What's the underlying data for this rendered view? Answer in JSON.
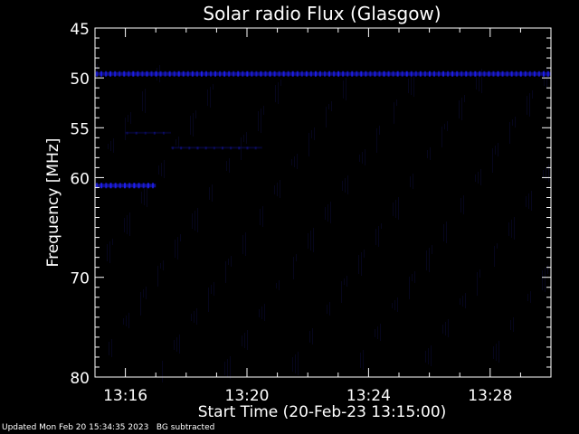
{
  "chart_data": {
    "type": "heatmap",
    "title": "Solar radio Flux (Glasgow)",
    "xlabel": "Start Time (20-Feb-23 13:15:00)",
    "ylabel": "Frequency [MHz]",
    "xlim": [
      "13:15:00",
      "13:30:00"
    ],
    "ylim": [
      45,
      80
    ],
    "x_ticks": [
      "13:16",
      "13:20",
      "13:24",
      "13:28"
    ],
    "y_ticks": [
      45,
      50,
      55,
      60,
      70,
      80
    ],
    "colormap": "black-to-blue",
    "colors": {
      "background": "#000000",
      "axes": "#ffffff",
      "signal": "#2020ff"
    },
    "features": [
      {
        "label": "constant band",
        "freq_mhz": 49.6,
        "time_start": "13:15:00",
        "time_end": "13:30:00",
        "intensity": 0.85
      },
      {
        "label": "bright band",
        "freq_mhz": 60.8,
        "time_start": "13:15:00",
        "time_end": "13:17:00",
        "intensity": 0.95
      },
      {
        "label": "faint band",
        "freq_mhz": 57.0,
        "time_start": "13:17:30",
        "time_end": "13:20:30",
        "intensity": 0.35
      },
      {
        "label": "faint band",
        "freq_mhz": 55.5,
        "time_start": "13:16:00",
        "time_end": "13:17:30",
        "intensity": 0.3
      }
    ]
  },
  "footer": {
    "updated": "Updated Mon Feb 20 15:34:35 2023",
    "note": "BG subtracted"
  }
}
